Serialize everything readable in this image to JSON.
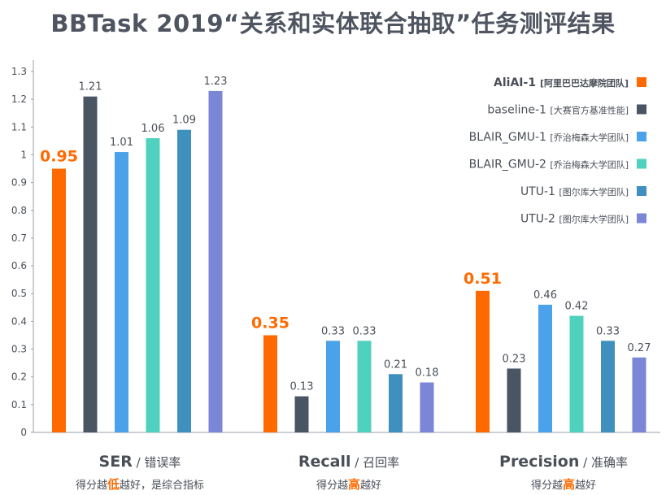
{
  "title": "BBTask 2019“关系和实体联合抽取”任务测评结果",
  "colors": {
    "AliAI-1": "#ff6a00",
    "baseline-1": "#4a5563",
    "BLAIR_GMU-1": "#4aa3ea",
    "BLAIR_GMU-2": "#4fd1bd",
    "UTU-1": "#3f8fbf",
    "UTU-2": "#7b86d6",
    "axis": "#9aa0a8",
    "text": "#4a4f57",
    "highlight": "#ff6a00"
  },
  "chart_data": {
    "type": "bar",
    "ylim": [
      0,
      1.3
    ],
    "yticks": [
      "0",
      "0.1",
      "0.2",
      "0.3",
      "0.4",
      "0.5",
      "0.6",
      "0.7",
      "0.8",
      "0.9",
      "1",
      "1.1",
      "1.2",
      "1.3"
    ],
    "groups": [
      {
        "metric": "SER",
        "sep": " / ",
        "cn": "错误率",
        "note_pre": "得分越",
        "note_hi": "低",
        "note_post": "越好，是综合指标"
      },
      {
        "metric": "Recall",
        "sep": " / ",
        "cn": "召回率",
        "note_pre": "得分越",
        "note_hi": "高",
        "note_post": "越好"
      },
      {
        "metric": "Precision",
        "sep": " / ",
        "cn": "准确率",
        "note_pre": "得分越",
        "note_hi": "高",
        "note_post": "越好"
      }
    ],
    "series": [
      {
        "name": "AliAI-1",
        "team": "[阿里巴巴达摩院团队]",
        "values": [
          0.95,
          0.35,
          0.51
        ],
        "labels": [
          "0.95",
          "0.35",
          "0.51"
        ],
        "highlight": true
      },
      {
        "name": "baseline-1",
        "team": "[大赛官方基准性能]",
        "values": [
          1.21,
          0.13,
          0.23
        ],
        "labels": [
          "1.21",
          "0.13",
          "0.23"
        ]
      },
      {
        "name": "BLAIR_GMU-1",
        "team": "[乔治梅森大学团队]",
        "values": [
          1.01,
          0.33,
          0.46
        ],
        "labels": [
          "1.01",
          "0.33",
          "0.46"
        ]
      },
      {
        "name": "BLAIR_GMU-2",
        "team": "[乔治梅森大学团队]",
        "values": [
          1.06,
          0.33,
          0.42
        ],
        "labels": [
          "1.06",
          "0.33",
          "0.42"
        ]
      },
      {
        "name": "UTU-1",
        "team": "[图尔库大学团队]",
        "values": [
          1.09,
          0.21,
          0.33
        ],
        "labels": [
          "1.09",
          "0.21",
          "0.33"
        ]
      },
      {
        "name": "UTU-2",
        "team": "[图尔库大学团队]",
        "values": [
          1.23,
          0.18,
          0.27
        ],
        "labels": [
          "1.23",
          "0.18",
          "0.27"
        ]
      }
    ],
    "legend_position": "top-right",
    "grid": false
  }
}
